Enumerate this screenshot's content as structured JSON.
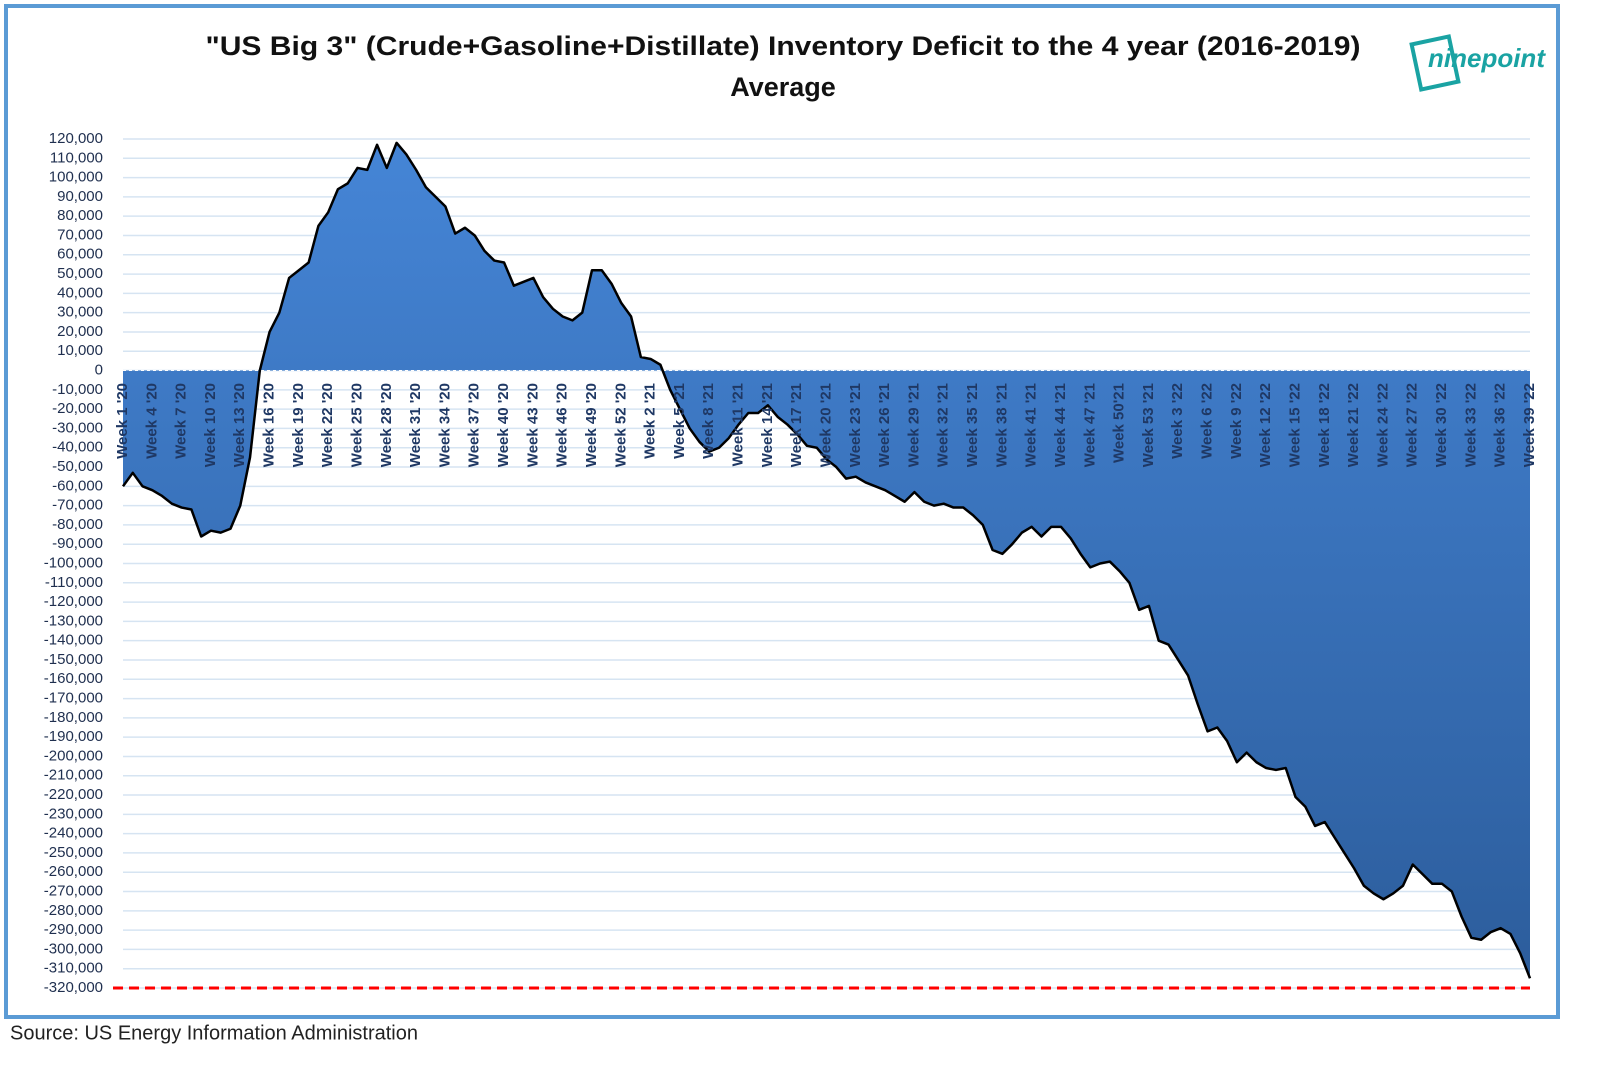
{
  "chart_data": {
    "type": "area",
    "title": [
      "\"US Big 3\" (Crude+Gasoline+Distillate) Inventory Deficit to the 4 year (2016-2019)",
      "Average"
    ],
    "source": "Source: US Energy Information Administration",
    "logo": "ninepoint",
    "color": "#3b78c8",
    "line_color": "#000000",
    "grid": true,
    "reference_line": {
      "value": -320000,
      "color": "#ff0000",
      "style": "dashed"
    },
    "ylim": [
      -320000,
      120000
    ],
    "yticks": [
      {
        "value": 120000,
        "label": "120,000"
      },
      {
        "value": 110000,
        "label": "110,000"
      },
      {
        "value": 100000,
        "label": "100,000"
      },
      {
        "value": 90000,
        "label": "90,000"
      },
      {
        "value": 80000,
        "label": "80,000"
      },
      {
        "value": 70000,
        "label": "70,000"
      },
      {
        "value": 60000,
        "label": "60,000"
      },
      {
        "value": 50000,
        "label": "50,000"
      },
      {
        "value": 40000,
        "label": "40,000"
      },
      {
        "value": 30000,
        "label": "30,000"
      },
      {
        "value": 20000,
        "label": "20,000"
      },
      {
        "value": 10000,
        "label": "10,000"
      },
      0,
      {
        "value": -10000,
        "label": "-10,000"
      },
      {
        "value": -20000,
        "label": "-20,000"
      },
      {
        "value": -30000,
        "label": "-30,000"
      },
      {
        "value": -40000,
        "label": "-40,000"
      },
      {
        "value": -50000,
        "label": "-50,000"
      },
      {
        "value": -60000,
        "label": "-60,000"
      },
      {
        "value": -70000,
        "label": "-70,000"
      },
      {
        "value": -80000,
        "label": "-80,000"
      },
      {
        "value": -90000,
        "label": "-90,000"
      },
      {
        "value": -100000,
        "label": "-100,000"
      },
      {
        "value": -110000,
        "label": "-110,000"
      },
      {
        "value": -120000,
        "label": "-120,000"
      },
      {
        "value": -130000,
        "label": "-130,000"
      },
      {
        "value": -140000,
        "label": "-140,000"
      },
      {
        "value": -150000,
        "label": "-150,000"
      },
      {
        "value": -160000,
        "label": "-160,000"
      },
      {
        "value": -170000,
        "label": "-170,000"
      },
      {
        "value": -180000,
        "label": "-180,000"
      },
      {
        "value": -190000,
        "label": "-190,000"
      },
      {
        "value": -200000,
        "label": "-200,000"
      },
      {
        "value": -210000,
        "label": "-210,000"
      },
      {
        "value": -220000,
        "label": "-220,000"
      },
      {
        "value": -230000,
        "label": "-230,000"
      },
      {
        "value": -240000,
        "label": "-240,000"
      },
      {
        "value": -250000,
        "label": "-250,000"
      },
      {
        "value": -260000,
        "label": "-260,000"
      },
      {
        "value": -270000,
        "label": "-270,000"
      },
      {
        "value": -280000,
        "label": "-280,000"
      },
      {
        "value": -290000,
        "label": "-290,000"
      },
      {
        "value": -300000,
        "label": "-300,000"
      },
      {
        "value": -310000,
        "label": "-310,000"
      },
      {
        "value": -320000,
        "label": "-320,000"
      }
    ],
    "categories": [
      "Week 1 '20",
      null,
      null,
      "Week 4 '20",
      null,
      null,
      "Week 7 '20",
      null,
      null,
      "Week 10 '20",
      null,
      null,
      "Week 13 '20",
      null,
      null,
      "Week 16 '20",
      null,
      null,
      "Week 19 '20",
      null,
      null,
      "Week 22 '20",
      null,
      null,
      "Week 25 '20",
      null,
      null,
      "Week 28 '20",
      null,
      null,
      "Week 31 '20",
      null,
      null,
      "Week 34 '20",
      null,
      null,
      "Week 37 '20",
      null,
      null,
      "Week 40 '20",
      null,
      null,
      "Week 43 '20",
      null,
      null,
      "Week 46 '20",
      null,
      null,
      "Week 49 '20",
      null,
      null,
      "Week 52 '20",
      null,
      null,
      "Week 2 '21",
      null,
      null,
      "Week 5 '21",
      null,
      null,
      "Week 8 '21",
      null,
      null,
      "Week 11 '21",
      null,
      null,
      "Week 14 '21",
      null,
      null,
      "Week 17 '21",
      null,
      null,
      "Week 20 '21",
      null,
      null,
      "Week 23 '21",
      null,
      null,
      "Week 26 '21",
      null,
      null,
      "Week 29 '21",
      null,
      null,
      "Week 32 '21",
      null,
      null,
      "Week 35 '21",
      null,
      null,
      "Week 38 '21",
      null,
      null,
      "Week 41 '21",
      null,
      null,
      "Week 44 '21",
      null,
      null,
      "Week 47 '21",
      null,
      null,
      "Week 50'21",
      null,
      null,
      "Week 53 '21",
      null,
      null,
      "Week 3 '22",
      null,
      null,
      "Week 6 '22",
      null,
      null,
      "Week 9 '22",
      null,
      null,
      "Week 12 '22",
      null,
      null,
      "Week 15 '22",
      null,
      null,
      "Week 18 '22",
      null,
      null,
      "Week 21 '22",
      null,
      null,
      "Week 24 '22",
      null,
      null,
      "Week 27 '22",
      null,
      null,
      "Week 30 '22",
      null,
      null,
      "Week 33 '22",
      null,
      null,
      "Week 36 '22",
      null,
      null,
      "Week 39 '22"
    ],
    "values": [
      -60000,
      -53000,
      -60000,
      -62000,
      -65000,
      -69000,
      -71000,
      -72000,
      -86000,
      -83000,
      -84000,
      -82000,
      -70000,
      -45000,
      0,
      20000,
      30000,
      48000,
      52000,
      56000,
      75000,
      82000,
      94000,
      97000,
      105000,
      104000,
      117000,
      105000,
      118000,
      112000,
      104000,
      95000,
      90000,
      85000,
      71000,
      74000,
      70000,
      62000,
      57000,
      56000,
      44000,
      46000,
      48000,
      38000,
      32000,
      28000,
      26000,
      30000,
      52000,
      52000,
      45000,
      35000,
      28000,
      7000,
      6000,
      3000,
      -10000,
      -20000,
      -30000,
      -37000,
      -42000,
      -40000,
      -35000,
      -28000,
      -22000,
      -22000,
      -18000,
      -24000,
      -28000,
      -33000,
      -39000,
      -40000,
      -46000,
      -50000,
      -56000,
      -55000,
      -58000,
      -60000,
      -62000,
      -65000,
      -68000,
      -63000,
      -68000,
      -70000,
      -69000,
      -71000,
      -71000,
      -75000,
      -80000,
      -93000,
      -95000,
      -90000,
      -84000,
      -81000,
      -86000,
      -81000,
      -81000,
      -87000,
      -95000,
      -102000,
      -100000,
      -99000,
      -104000,
      -110000,
      -124000,
      -122000,
      -140000,
      -142000,
      -150000,
      -158000,
      -173000,
      -187000,
      -185000,
      -192000,
      -203000,
      -198000,
      -203000,
      -206000,
      -207000,
      -206000,
      -221000,
      -226000,
      -236000,
      -234000,
      -242000,
      -250000,
      -258000,
      -267000,
      -271000,
      -274000,
      -271000,
      -267000,
      -256000,
      -261000,
      -266000,
      -266000,
      -270000,
      -283000,
      -294000,
      -295000,
      -291000,
      -289000,
      -292000,
      -302000,
      -315000
    ]
  }
}
